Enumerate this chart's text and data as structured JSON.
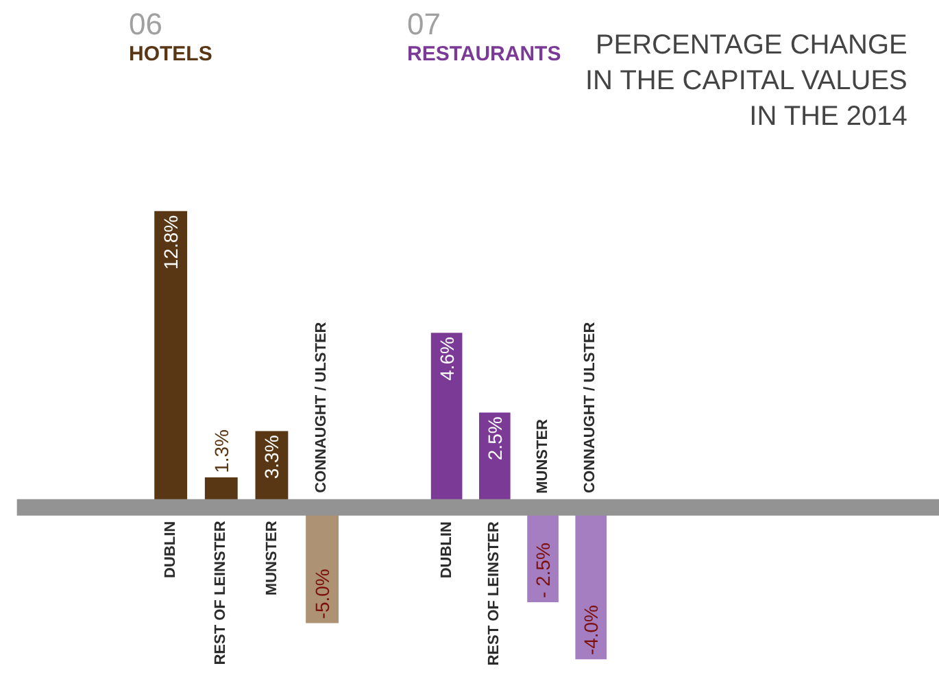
{
  "chart_data": [
    {
      "type": "bar",
      "title": "06",
      "subtitle": "HOTELS",
      "categories": [
        "DUBLIN",
        "REST OF LEINSTER",
        "MUNSTER",
        "CONNAUGHT / ULSTER"
      ],
      "values": [
        12.8,
        1.3,
        3.3,
        -5.0
      ],
      "colors": [
        "#5a3714",
        "#5a3714",
        "#5a3714",
        "#ad9273"
      ],
      "value_labels": [
        "12.8%",
        "1.3%",
        "3.3%",
        "-5.0%"
      ]
    },
    {
      "type": "bar",
      "title": "07",
      "subtitle": "RESTAURANTS",
      "categories": [
        "DUBLIN",
        "REST OF LEINSTER",
        "MUNSTER",
        "CONNAUGHT / ULSTER"
      ],
      "values": [
        4.6,
        2.5,
        -2.5,
        -4.0
      ],
      "colors": [
        "#7b3a96",
        "#7b3a96",
        "#a47ec0",
        "#a47ec0"
      ],
      "value_labels": [
        "4.6%",
        "2.5%",
        "- 2.5%",
        "-4.0%"
      ],
      "annotations": [
        "PERCENTAGE CHANGE\nIN THE CAPITAL VALUES\nIN THE 2014"
      ]
    }
  ]
}
